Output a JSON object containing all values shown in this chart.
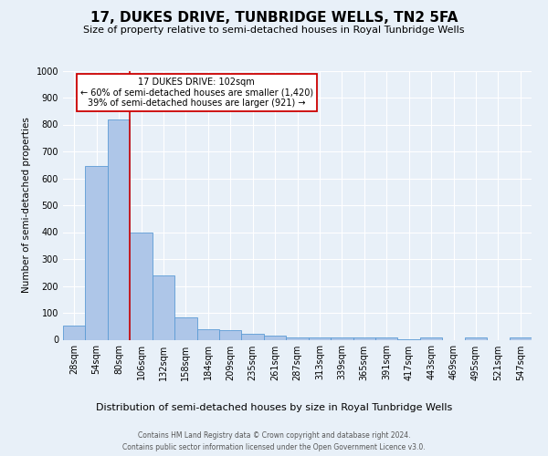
{
  "title": "17, DUKES DRIVE, TUNBRIDGE WELLS, TN2 5FA",
  "subtitle": "Size of property relative to semi-detached houses in Royal Tunbridge Wells",
  "xlabel_dist": "Distribution of semi-detached houses by size in Royal Tunbridge Wells",
  "ylabel": "Number of semi-detached properties",
  "footer_line1": "Contains HM Land Registry data © Crown copyright and database right 2024.",
  "footer_line2": "Contains public sector information licensed under the Open Government Licence v3.0.",
  "annotation_title": "17 DUKES DRIVE: 102sqm",
  "annotation_line2": "← 60% of semi-detached houses are smaller (1,420)",
  "annotation_line3": "39% of semi-detached houses are larger (921) →",
  "categories": [
    "28sqm",
    "54sqm",
    "80sqm",
    "106sqm",
    "132sqm",
    "158sqm",
    "184sqm",
    "209sqm",
    "235sqm",
    "261sqm",
    "287sqm",
    "313sqm",
    "339sqm",
    "365sqm",
    "391sqm",
    "417sqm",
    "443sqm",
    "469sqm",
    "495sqm",
    "521sqm",
    "547sqm"
  ],
  "values": [
    52,
    645,
    820,
    398,
    238,
    83,
    38,
    35,
    22,
    15,
    10,
    8,
    9,
    9,
    10,
    3,
    8,
    0,
    8,
    0,
    8
  ],
  "bar_color": "#aec6e8",
  "bar_edge_color": "#5b9bd5",
  "vline_color": "#cc0000",
  "vline_x_index": 3,
  "ylim": [
    0,
    1000
  ],
  "yticks": [
    0,
    100,
    200,
    300,
    400,
    500,
    600,
    700,
    800,
    900,
    1000
  ],
  "annotation_box_color": "#ffffff",
  "annotation_box_edge": "#cc0000",
  "bg_color": "#e8f0f8",
  "grid_color": "#ffffff",
  "title_fontsize": 11,
  "subtitle_fontsize": 8,
  "ylabel_fontsize": 7.5,
  "tick_fontsize": 7,
  "annotation_fontsize": 7,
  "footer_fontsize": 5.5,
  "xlabel_dist_fontsize": 8
}
